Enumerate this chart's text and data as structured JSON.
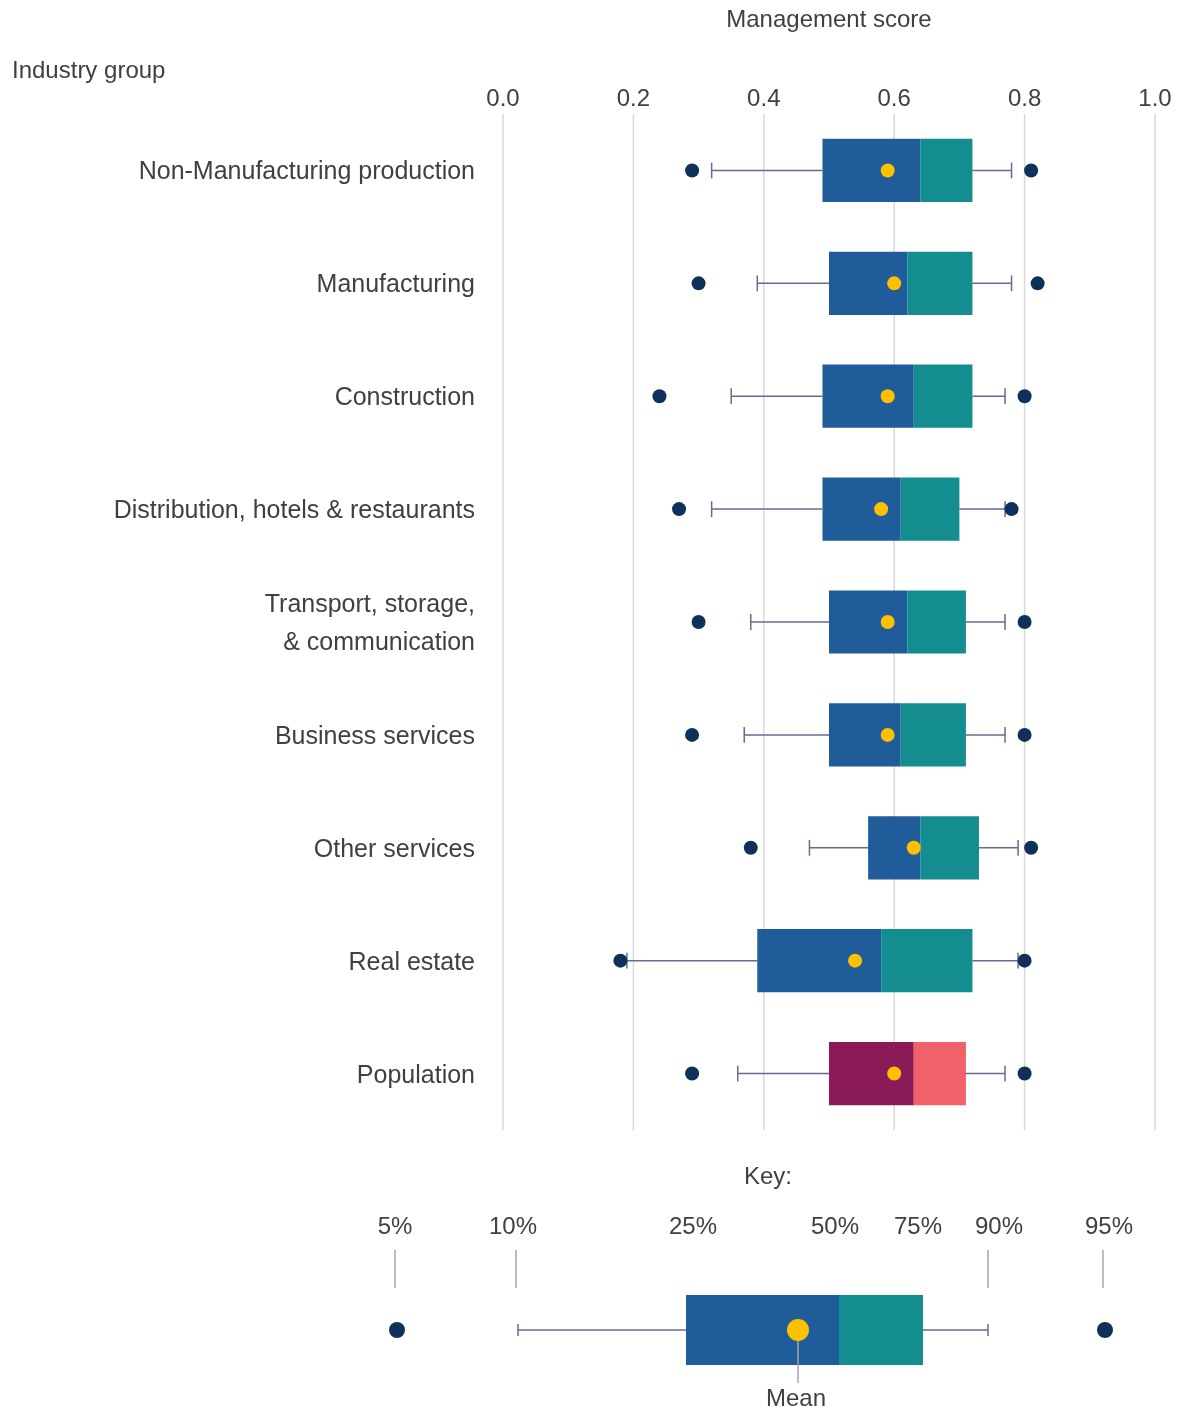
{
  "chart_data": {
    "type": "box",
    "orientation": "horizontal",
    "xlabel": "Management score",
    "ylabel": "Industry group",
    "categories": [
      "Non-Manufacturing production",
      "Manufacturing",
      "Construction",
      "Distribution, hotels & restaurants",
      "Transport, storage, & communication",
      "Business services",
      "Other services",
      "Real estate",
      "Population"
    ],
    "series": [
      {
        "color": "#138d90",
        "colors": [
          "#1f5c99",
          "#1f5c99",
          "#1f5c99",
          "#1f5c99",
          "#1f5c99",
          "#1f5c99",
          "#1f5c99",
          "#1f5c99",
          null
        ],
        "boxes": [
          {
            "low": 0.32,
            "q1": 0.49,
            "median": 0.64,
            "q3": 0.72,
            "high": 0.78,
            "mean": 0.59,
            "outliers": [
              0.29,
              0.81
            ]
          },
          {
            "low": 0.39,
            "q1": 0.5,
            "median": 0.62,
            "q3": 0.72,
            "high": 0.78,
            "mean": 0.6,
            "outliers": [
              0.3,
              0.82
            ]
          },
          {
            "low": 0.35,
            "q1": 0.49,
            "median": 0.63,
            "q3": 0.72,
            "high": 0.77,
            "mean": 0.59,
            "outliers": [
              0.24,
              0.8
            ]
          },
          {
            "low": 0.32,
            "q1": 0.49,
            "median": 0.61,
            "q3": 0.7,
            "high": 0.77,
            "mean": 0.58,
            "outliers": [
              0.27,
              0.78
            ]
          },
          {
            "low": 0.38,
            "q1": 0.5,
            "median": 0.62,
            "q3": 0.71,
            "high": 0.77,
            "mean": 0.59,
            "outliers": [
              0.3,
              0.8
            ]
          },
          {
            "low": 0.37,
            "q1": 0.5,
            "median": 0.61,
            "q3": 0.71,
            "high": 0.77,
            "mean": 0.59,
            "outliers": [
              0.29,
              0.8
            ]
          },
          {
            "low": 0.47,
            "q1": 0.56,
            "median": 0.64,
            "q3": 0.73,
            "high": 0.79,
            "mean": 0.63,
            "outliers": [
              0.38,
              0.81
            ]
          },
          {
            "low": 0.19,
            "q1": 0.39,
            "median": 0.58,
            "q3": 0.72,
            "high": 0.79,
            "mean": 0.54,
            "outliers": [
              0.18,
              0.8
            ]
          },
          null
        ]
      },
      {
        "color": "#f0616a",
        "colors": [
          null,
          null,
          null,
          null,
          null,
          null,
          null,
          null,
          "#8b1a59"
        ],
        "boxes": [
          null,
          null,
          null,
          null,
          null,
          null,
          null,
          null,
          {
            "low": 0.36,
            "q1": 0.5,
            "median": 0.63,
            "q3": 0.71,
            "high": 0.77,
            "mean": 0.6,
            "outliers": [
              0.29,
              0.8
            ]
          }
        ]
      }
    ],
    "xlim": [
      0,
      1
    ],
    "xticks": [
      {
        "value": 0,
        "label": "0.0"
      },
      {
        "value": 0.2,
        "label": "0.2"
      },
      {
        "value": 0.4,
        "label": "0.4"
      },
      {
        "value": 0.6,
        "label": "0.6"
      },
      {
        "value": 0.8,
        "label": "0.8"
      },
      {
        "value": 1,
        "label": "1.0"
      }
    ],
    "grid": "x",
    "marker": "circle",
    "annotations": [
      "Key:",
      "5%",
      "10%",
      "25%",
      "50%",
      "75%",
      "90%",
      "95%",
      "Mean"
    ]
  }
}
